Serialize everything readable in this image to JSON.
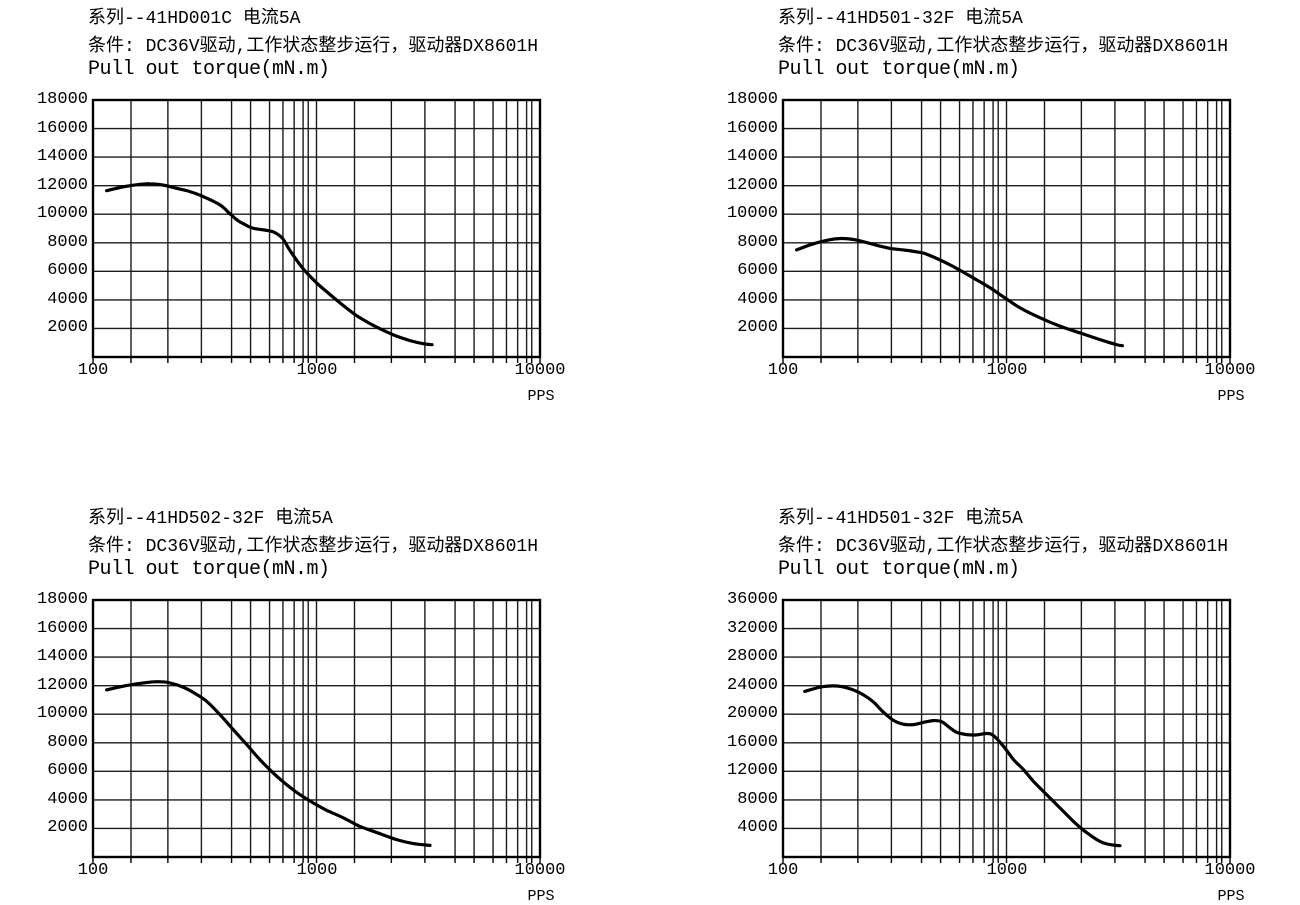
{
  "page": {
    "bg": "#ffffff",
    "fg": "#000000"
  },
  "chart_data": [
    {
      "type": "line",
      "series_title": "系列--41HD001C 电流5A",
      "condition": "条件: DC36V驱动,工作状态整步运行，驱动器DX8601H",
      "axis_title": "Pull out torque(mN.m)",
      "x_unit": "PPS",
      "x_scale": "log",
      "x_range": [
        100,
        10000
      ],
      "x_tick_labels": [
        "100",
        "1000",
        "10000"
      ],
      "ylim": [
        0,
        18000
      ],
      "y_step": 2000,
      "y_tick_labels": [
        "18000",
        "16000",
        "14000",
        "12000",
        "10000",
        "8000",
        "6000",
        "4000",
        "2000"
      ],
      "grid": "on",
      "line_color": "#000000",
      "points": [
        [
          115,
          11650
        ],
        [
          135,
          11900
        ],
        [
          158,
          12070
        ],
        [
          178,
          12140
        ],
        [
          205,
          12050
        ],
        [
          235,
          11820
        ],
        [
          265,
          11630
        ],
        [
          310,
          11250
        ],
        [
          370,
          10650
        ],
        [
          412,
          10000
        ],
        [
          445,
          9550
        ],
        [
          478,
          9280
        ],
        [
          512,
          9050
        ],
        [
          550,
          8950
        ],
        [
          600,
          8870
        ],
        [
          650,
          8720
        ],
        [
          705,
          8300
        ],
        [
          765,
          7400
        ],
        [
          875,
          6150
        ],
        [
          1000,
          5200
        ],
        [
          1150,
          4370
        ],
        [
          1320,
          3600
        ],
        [
          1510,
          2900
        ],
        [
          1735,
          2340
        ],
        [
          1990,
          1870
        ],
        [
          2290,
          1450
        ],
        [
          2620,
          1150
        ],
        [
          3000,
          930
        ],
        [
          3290,
          860
        ]
      ]
    },
    {
      "type": "line",
      "series_title": "系列--41HD501-32F 电流5A",
      "condition": "条件: DC36V驱动,工作状态整步运行，驱动器DX8601H",
      "axis_title": "Pull out torque(mN.m)",
      "x_unit": "PPS",
      "x_scale": "log",
      "x_range": [
        100,
        10000
      ],
      "x_tick_labels": [
        "100",
        "1000",
        "10000"
      ],
      "ylim": [
        0,
        18000
      ],
      "y_step": 2000,
      "y_tick_labels": [
        "18000",
        "16000",
        "14000",
        "12000",
        "10000",
        "8000",
        "6000",
        "4000",
        "2000"
      ],
      "grid": "on",
      "line_color": "#000000",
      "points": [
        [
          115,
          7500
        ],
        [
          135,
          7900
        ],
        [
          160,
          8200
        ],
        [
          182,
          8300
        ],
        [
          207,
          8230
        ],
        [
          237,
          8010
        ],
        [
          268,
          7790
        ],
        [
          305,
          7590
        ],
        [
          350,
          7490
        ],
        [
          395,
          7370
        ],
        [
          440,
          7200
        ],
        [
          560,
          6450
        ],
        [
          690,
          5650
        ],
        [
          845,
          4840
        ],
        [
          985,
          4140
        ],
        [
          1150,
          3440
        ],
        [
          1410,
          2750
        ],
        [
          1740,
          2150
        ],
        [
          2130,
          1690
        ],
        [
          2620,
          1220
        ],
        [
          2900,
          1000
        ],
        [
          3150,
          840
        ],
        [
          3300,
          790
        ]
      ]
    },
    {
      "type": "line",
      "series_title": "系列--41HD502-32F 电流5A",
      "condition": "条件: DC36V驱动,工作状态整步运行，驱动器DX8601H",
      "axis_title": "Pull out torque(mN.m)",
      "x_unit": "PPS",
      "x_scale": "log",
      "x_range": [
        100,
        10000
      ],
      "x_tick_labels": [
        "100",
        "1000",
        "10000"
      ],
      "ylim": [
        0,
        18000
      ],
      "y_step": 2000,
      "y_tick_labels": [
        "18000",
        "16000",
        "14000",
        "12000",
        "10000",
        "8000",
        "6000",
        "4000",
        "2000"
      ],
      "grid": "on",
      "line_color": "#000000",
      "points": [
        [
          115,
          11700
        ],
        [
          140,
          12000
        ],
        [
          170,
          12200
        ],
        [
          195,
          12280
        ],
        [
          220,
          12200
        ],
        [
          255,
          11870
        ],
        [
          290,
          11400
        ],
        [
          323,
          10900
        ],
        [
          370,
          9970
        ],
        [
          424,
          8920
        ],
        [
          487,
          7870
        ],
        [
          558,
          6820
        ],
        [
          640,
          5890
        ],
        [
          735,
          5070
        ],
        [
          843,
          4370
        ],
        [
          967,
          3790
        ],
        [
          1110,
          3270
        ],
        [
          1321,
          2740
        ],
        [
          1562,
          2150
        ],
        [
          1920,
          1640
        ],
        [
          2280,
          1220
        ],
        [
          2715,
          940
        ],
        [
          3220,
          810
        ]
      ]
    },
    {
      "type": "line",
      "series_title": "系列--41HD501-32F 电流5A",
      "condition": "条件: DC36V驱动,工作状态整步运行，驱动器DX8601H",
      "axis_title": "Pull out torque(mN.m)",
      "x_unit": "PPS",
      "x_scale": "log",
      "x_range": [
        100,
        10000
      ],
      "x_tick_labels": [
        "100",
        "1000",
        "10000"
      ],
      "ylim": [
        0,
        36000
      ],
      "y_step": 4000,
      "y_tick_labels": [
        "36000",
        "32000",
        "28000",
        "24000",
        "20000",
        "16000",
        "12000",
        "8000",
        "4000"
      ],
      "grid": "on",
      "line_color": "#000000",
      "points": [
        [
          125,
          23200
        ],
        [
          150,
          23850
        ],
        [
          175,
          23950
        ],
        [
          200,
          23550
        ],
        [
          228,
          22750
        ],
        [
          254,
          21700
        ],
        [
          280,
          20350
        ],
        [
          312,
          19150
        ],
        [
          345,
          18600
        ],
        [
          383,
          18550
        ],
        [
          424,
          18850
        ],
        [
          470,
          19100
        ],
        [
          513,
          18950
        ],
        [
          558,
          18100
        ],
        [
          600,
          17450
        ],
        [
          665,
          17150
        ],
        [
          735,
          17100
        ],
        [
          815,
          17300
        ],
        [
          875,
          17000
        ],
        [
          970,
          15500
        ],
        [
          1075,
          13650
        ],
        [
          1190,
          12250
        ],
        [
          1320,
          10600
        ],
        [
          1510,
          8750
        ],
        [
          1620,
          7800
        ],
        [
          1795,
          6400
        ],
        [
          1990,
          5000
        ],
        [
          2190,
          3850
        ],
        [
          2370,
          3050
        ],
        [
          2530,
          2450
        ],
        [
          2710,
          1980
        ],
        [
          2920,
          1720
        ],
        [
          3220,
          1580
        ]
      ]
    }
  ]
}
